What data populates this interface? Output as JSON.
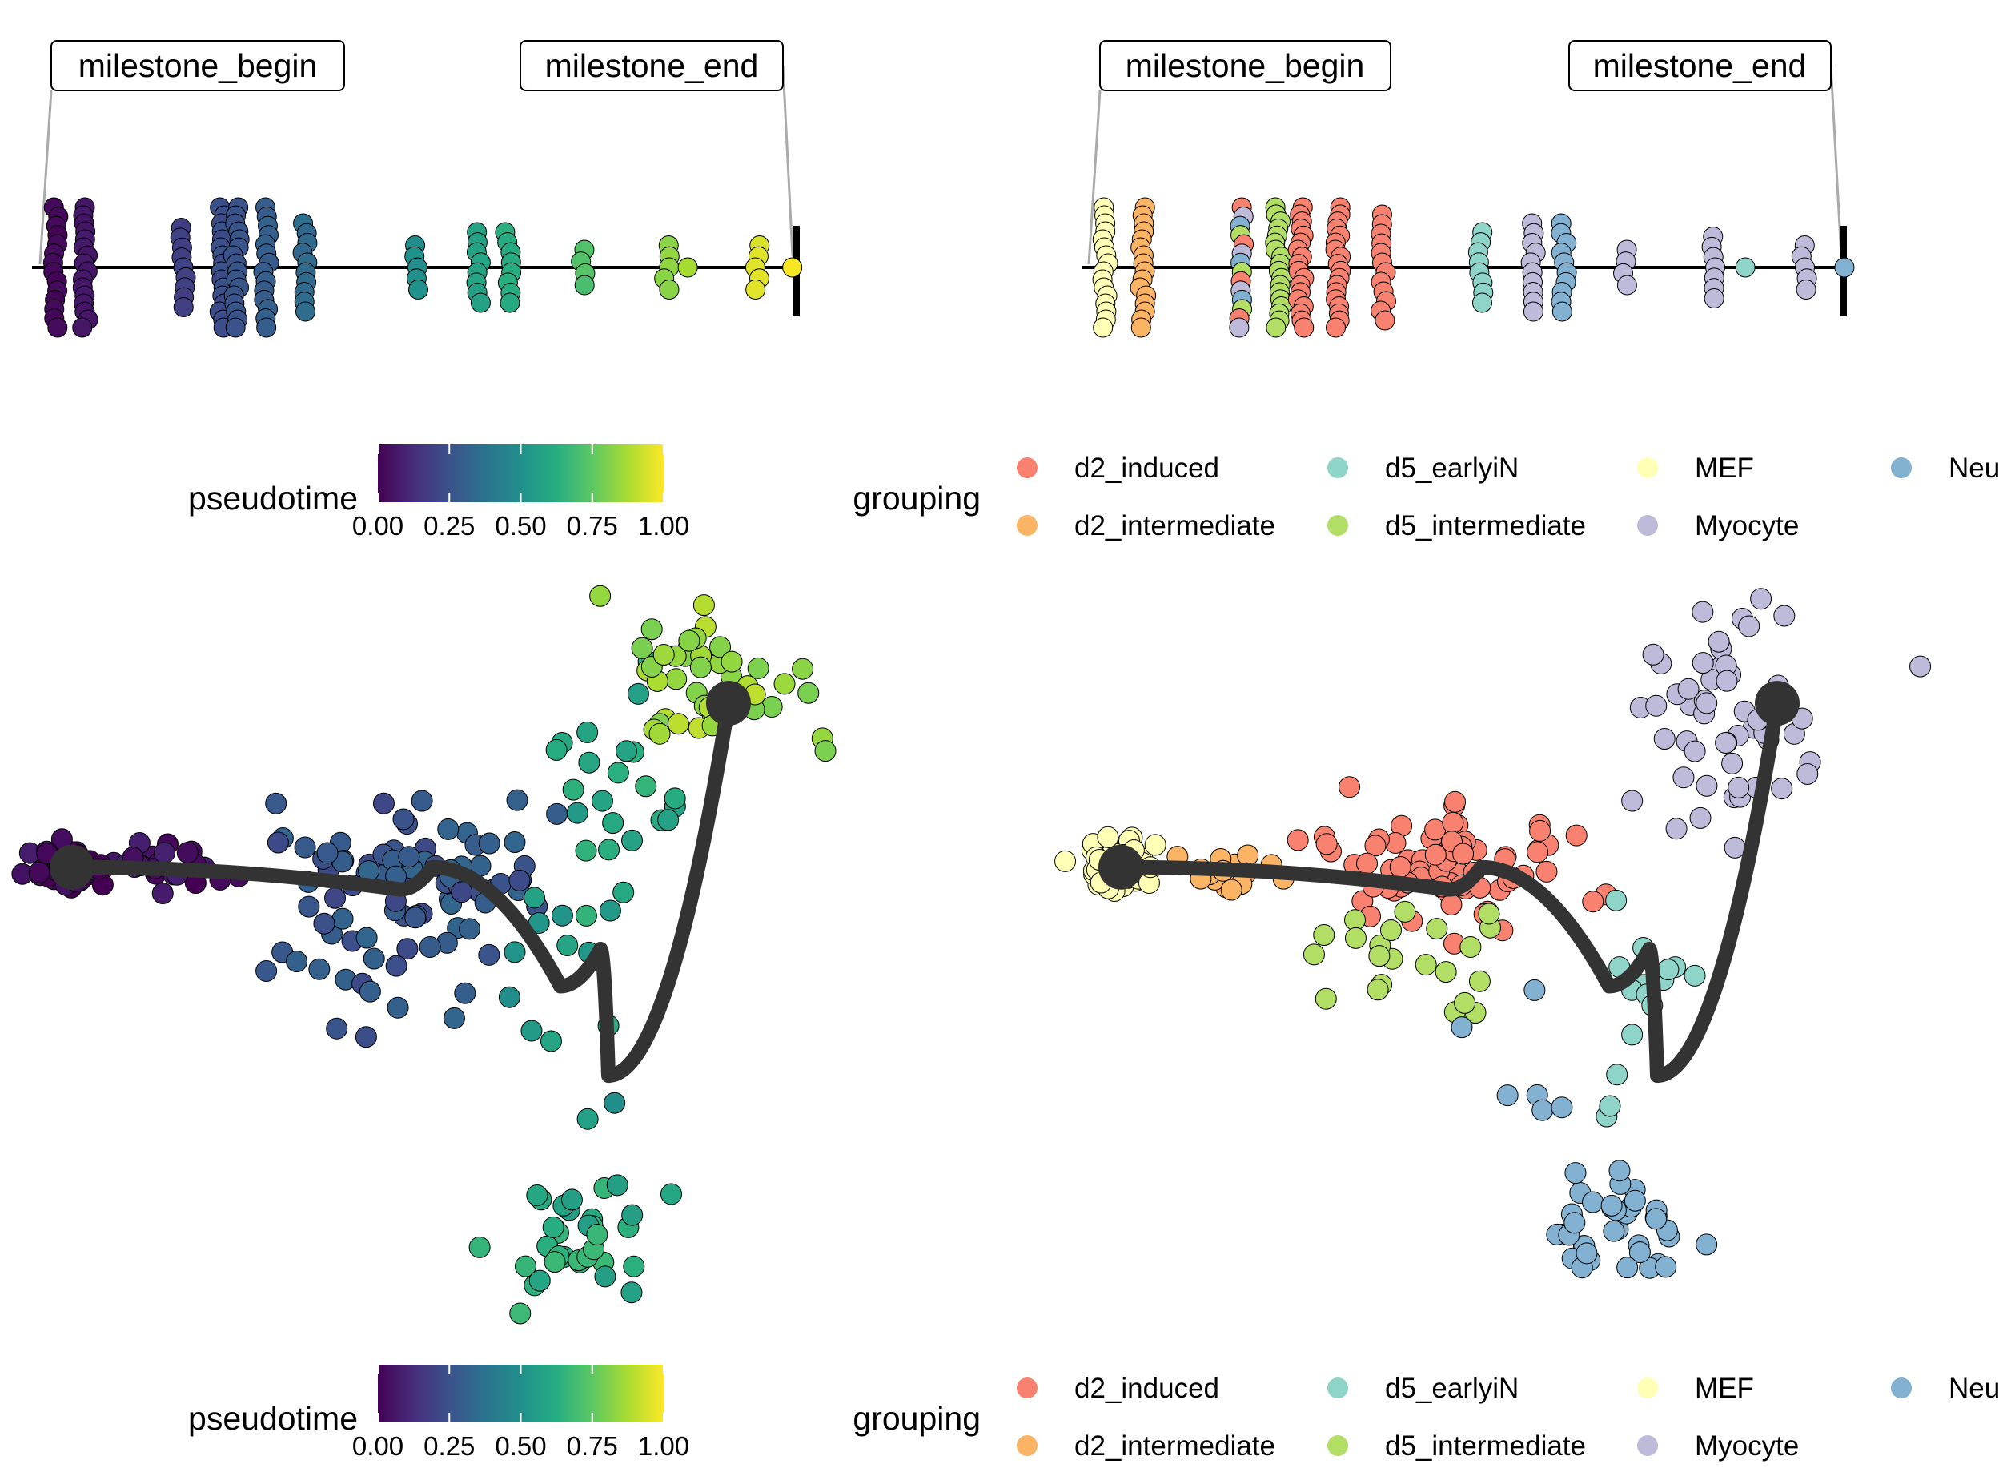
{
  "chart_data": [
    {
      "panel": "top-left",
      "type": "scatter",
      "title": "",
      "xlabel": "",
      "ylabel": "",
      "milestones": [
        "milestone_begin",
        "milestone_end"
      ],
      "legend": {
        "title": "pseudotime",
        "type": "colorbar",
        "ticks": [
          "0.00",
          "0.25",
          "0.50",
          "0.75",
          "1.00"
        ]
      },
      "color_by": "pseudotime",
      "columns": [
        {
          "pt": 0.02,
          "n": 14
        },
        {
          "pt": 0.06,
          "n": 16
        },
        {
          "pt": 0.19,
          "n": 9
        },
        {
          "pt": 0.24,
          "n": 16
        },
        {
          "pt": 0.26,
          "n": 16
        },
        {
          "pt": 0.3,
          "n": 14
        },
        {
          "pt": 0.35,
          "n": 10
        },
        {
          "pt": 0.5,
          "n": 5
        },
        {
          "pt": 0.58,
          "n": 8
        },
        {
          "pt": 0.62,
          "n": 8
        },
        {
          "pt": 0.72,
          "n": 4
        },
        {
          "pt": 0.83,
          "n": 5
        },
        {
          "pt": 0.86,
          "n": 1
        },
        {
          "pt": 0.95,
          "n": 5
        },
        {
          "pt": 1.0,
          "n": 1
        }
      ]
    },
    {
      "panel": "top-right",
      "type": "scatter",
      "title": "",
      "xlabel": "",
      "ylabel": "",
      "milestones": [
        "milestone_begin",
        "milestone_end"
      ],
      "legend": {
        "title": "grouping",
        "type": "categorical",
        "position": "bottom",
        "groups": [
          "d2_induced",
          "d2_intermediate",
          "d5_earlyiN",
          "d5_intermediate",
          "MEF",
          "Myocyte",
          "Neuron"
        ]
      },
      "color_by": "grouping",
      "columns": [
        {
          "pos": 0.02,
          "group": "MEF",
          "n": 16
        },
        {
          "pos": 0.07,
          "group": "d2_intermediate",
          "n": 16
        },
        {
          "pos": 0.2,
          "group": "mixed",
          "n": 14
        },
        {
          "pos": 0.25,
          "group": "d5_intermediate",
          "n": 18
        },
        {
          "pos": 0.28,
          "group": "d2_induced",
          "n": 18
        },
        {
          "pos": 0.33,
          "group": "d2_induced",
          "n": 18
        },
        {
          "pos": 0.39,
          "group": "d2_induced",
          "n": 12
        },
        {
          "pos": 0.52,
          "group": "d5_earlyiN",
          "n": 8
        },
        {
          "pos": 0.59,
          "group": "Myocyte",
          "n": 10
        },
        {
          "pos": 0.63,
          "group": "Neuron",
          "n": 10
        },
        {
          "pos": 0.71,
          "group": "Myocyte",
          "n": 4
        },
        {
          "pos": 0.83,
          "group": "Myocyte",
          "n": 7
        },
        {
          "pos": 0.87,
          "group": "d5_earlyiN",
          "n": 1
        },
        {
          "pos": 0.95,
          "group": "Myocyte",
          "n": 5
        },
        {
          "pos": 1.0,
          "group": "Neuron",
          "n": 1
        }
      ]
    },
    {
      "panel": "bottom-left",
      "type": "scatter",
      "title": "",
      "xlabel": "",
      "ylabel": "",
      "legend": {
        "title": "pseudotime",
        "type": "colorbar",
        "ticks": [
          "0.00",
          "0.25",
          "0.50",
          "0.75",
          "1.00"
        ]
      },
      "color_by": "pseudotime",
      "clusters": [
        {
          "name": "start",
          "cx": -0.2,
          "cy": 6.1,
          "sx": 0.22,
          "sy": 0.14,
          "n": 55,
          "pt": 0.02
        },
        {
          "name": "tail",
          "cx": 0.9,
          "cy": 6.1,
          "sx": 0.35,
          "sy": 0.12,
          "n": 25,
          "pt": 0.06
        },
        {
          "name": "mid",
          "cx": 4.1,
          "cy": 6.0,
          "sx": 0.75,
          "sy": 0.42,
          "n": 75,
          "pt": 0.27
        },
        {
          "name": "lower-mid",
          "cx": 3.3,
          "cy": 4.6,
          "sx": 0.8,
          "sy": 0.55,
          "n": 18,
          "pt": 0.27
        },
        {
          "name": "junction",
          "cx": 6.2,
          "cy": 4.2,
          "sx": 0.7,
          "sy": 0.8,
          "n": 14,
          "pt": 0.55
        },
        {
          "name": "arm",
          "cx": 6.6,
          "cy": 7.2,
          "sx": 0.6,
          "sy": 0.5,
          "n": 22,
          "pt": 0.6
        },
        {
          "name": "end",
          "cx": 7.8,
          "cy": 8.6,
          "sx": 0.55,
          "sy": 0.45,
          "n": 45,
          "pt": 0.85
        },
        {
          "name": "bottom",
          "cx": 6.1,
          "cy": 1.2,
          "sx": 0.45,
          "sy": 0.45,
          "n": 35,
          "pt": 0.62
        }
      ],
      "trajectory": [
        [
          -0.2,
          6.1
        ],
        [
          3.9,
          5.8
        ],
        [
          4.3,
          6.1
        ],
        [
          5.9,
          4.5
        ],
        [
          6.4,
          5.0
        ],
        [
          6.5,
          3.3
        ],
        [
          8.0,
          8.3
        ]
      ],
      "milestone_nodes": [
        [
          -0.2,
          6.1
        ],
        [
          8.0,
          8.3
        ]
      ],
      "xlim": [
        -0.8,
        9.0
      ],
      "ylim": [
        0.0,
        10.0
      ]
    },
    {
      "panel": "bottom-right",
      "type": "scatter",
      "title": "",
      "xlabel": "",
      "ylabel": "",
      "legend": {
        "title": "grouping",
        "type": "categorical",
        "position": "bottom",
        "groups": [
          "d2_induced",
          "d2_intermediate",
          "d5_earlyiN",
          "d5_intermediate",
          "MEF",
          "Myocyte",
          "Neuron"
        ]
      },
      "color_by": "grouping",
      "clusters": [
        {
          "name": "MEF",
          "cx": -0.2,
          "cy": 6.1,
          "sx": 0.28,
          "sy": 0.15,
          "n": 55,
          "group": "MEF"
        },
        {
          "name": "d2_intermediate",
          "cx": 1.1,
          "cy": 6.0,
          "sx": 0.35,
          "sy": 0.12,
          "n": 16,
          "group": "d2_intermediate"
        },
        {
          "name": "d2_induced",
          "cx": 3.9,
          "cy": 6.1,
          "sx": 0.7,
          "sy": 0.35,
          "n": 80,
          "group": "d2_induced"
        },
        {
          "name": "d5_intermediate",
          "cx": 3.3,
          "cy": 4.7,
          "sx": 0.7,
          "sy": 0.45,
          "n": 22,
          "group": "d5_intermediate"
        },
        {
          "name": "d5_earlyiN",
          "cx": 6.1,
          "cy": 4.3,
          "sx": 0.6,
          "sy": 0.8,
          "n": 16,
          "group": "d5_earlyiN"
        },
        {
          "name": "Myocyte",
          "cx": 7.3,
          "cy": 8.1,
          "sx": 0.75,
          "sy": 0.75,
          "n": 55,
          "group": "Myocyte"
        },
        {
          "name": "Neuron-upper",
          "cx": 4.6,
          "cy": 3.4,
          "sx": 0.5,
          "sy": 0.6,
          "n": 6,
          "group": "Neuron"
        },
        {
          "name": "Neuron",
          "cx": 6.1,
          "cy": 1.3,
          "sx": 0.45,
          "sy": 0.45,
          "n": 38,
          "group": "Neuron"
        }
      ],
      "trajectory": [
        [
          -0.2,
          6.1
        ],
        [
          3.9,
          5.8
        ],
        [
          4.3,
          6.1
        ],
        [
          5.9,
          4.5
        ],
        [
          6.4,
          5.0
        ],
        [
          6.5,
          3.3
        ],
        [
          8.0,
          8.3
        ]
      ],
      "milestone_nodes": [
        [
          -0.2,
          6.1
        ],
        [
          8.0,
          8.3
        ]
      ],
      "xlim": [
        -0.8,
        9.0
      ],
      "ylim": [
        0.0,
        10.0
      ]
    }
  ],
  "colors": {
    "d2_induced": "#F8826F",
    "d2_intermediate": "#FBB464",
    "d5_earlyiN": "#8FD4C9",
    "d5_intermediate": "#B2DE66",
    "MEF": "#FFFFB5",
    "Myocyte": "#BEBADA",
    "Neuron": "#82B1D2",
    "trajectory": "#333333",
    "viridis": [
      "#440154",
      "#472D7B",
      "#3B528B",
      "#2C728E",
      "#21908C",
      "#27AD81",
      "#5DC863",
      "#AADC32",
      "#FDE725"
    ]
  }
}
